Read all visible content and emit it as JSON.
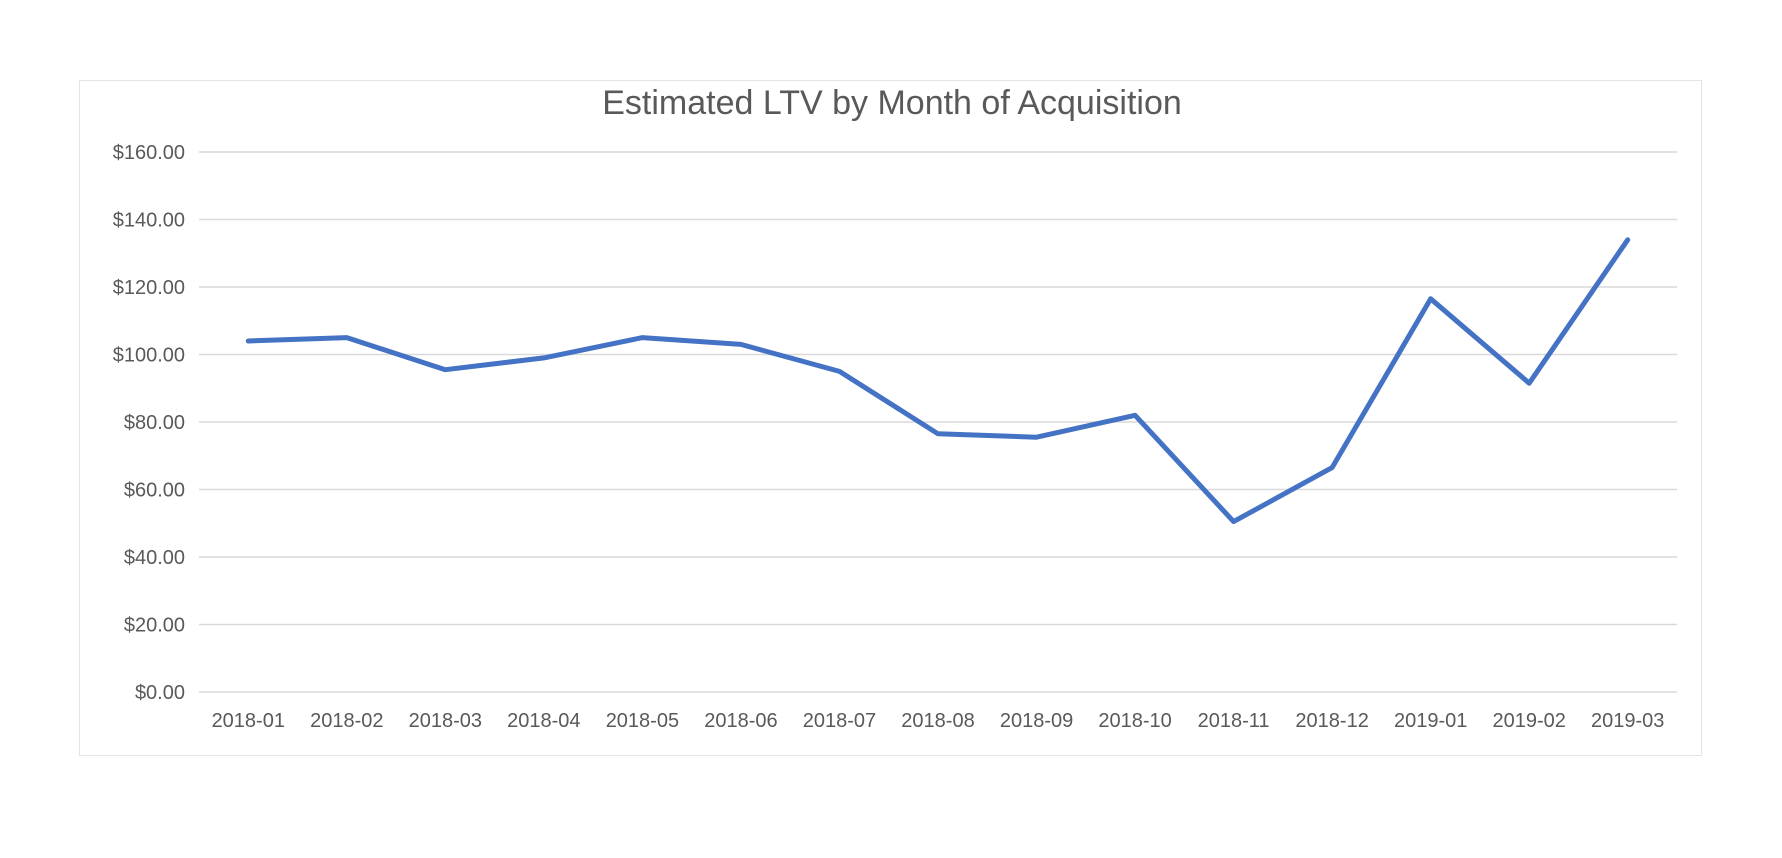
{
  "chart_data": {
    "type": "line",
    "title": "Estimated LTV by Month of Acquisition",
    "xlabel": "",
    "ylabel": "",
    "categories": [
      "2018-01",
      "2018-02",
      "2018-03",
      "2018-04",
      "2018-05",
      "2018-06",
      "2018-07",
      "2018-08",
      "2018-09",
      "2018-10",
      "2018-11",
      "2018-12",
      "2019-01",
      "2019-02",
      "2019-03"
    ],
    "series": [
      {
        "values": [
          104,
          105,
          95.5,
          99,
          105,
          103,
          95,
          76.5,
          75.5,
          82,
          50.5,
          66.5,
          116.5,
          91.5,
          134
        ],
        "color": "#4472C4"
      }
    ],
    "ylim": [
      0,
      160
    ],
    "y_ticks": [
      "$0.00",
      "$20.00",
      "$40.00",
      "$60.00",
      "$80.00",
      "$100.00",
      "$120.00",
      "$140.00",
      "$160.00"
    ],
    "grid": true,
    "legend": "none"
  }
}
